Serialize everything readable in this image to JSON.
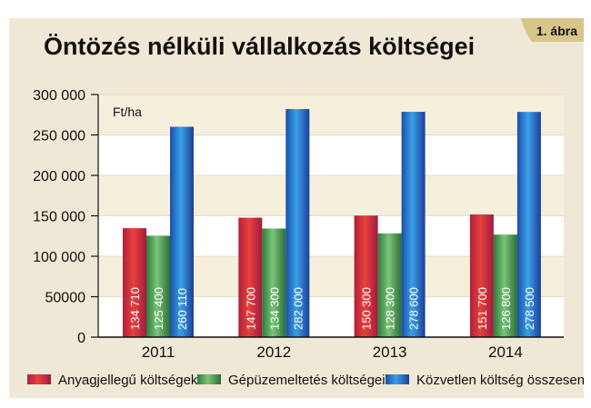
{
  "figure_label": "1. ábra",
  "chart_data": {
    "type": "bar",
    "title": "Öntözés nélküli vállalkozás költségei",
    "unit_label": "Ft/ha",
    "categories": [
      "2011",
      "2012",
      "2013",
      "2014"
    ],
    "ylim": [
      0,
      300000
    ],
    "yticks": [
      0,
      50000,
      100000,
      150000,
      200000,
      250000,
      300000
    ],
    "ytick_labels": [
      "0",
      "50000",
      "100 000",
      "150 000",
      "200 000",
      "250 000",
      "300 000"
    ],
    "grid": true,
    "legend_position": "bottom",
    "series": [
      {
        "name": "Anyagjellegű költségek",
        "color": "#d4283f",
        "values": [
          134710,
          147700,
          150300,
          151700
        ],
        "labels": [
          "134 710",
          "147 700",
          "150 300",
          "151 700"
        ]
      },
      {
        "name": "Gépüzemeltetés költségei",
        "color": "#3a9a4a",
        "values": [
          125400,
          134300,
          128300,
          126800
        ],
        "labels": [
          "125 400",
          "134 300",
          "128 300",
          "126 800"
        ]
      },
      {
        "name": "Közvetlen költség összesen",
        "color": "#1f72c8",
        "values": [
          260110,
          282000,
          278600,
          278500
        ],
        "labels": [
          "260 110",
          "282 000",
          "278 600",
          "278 500"
        ]
      }
    ]
  }
}
